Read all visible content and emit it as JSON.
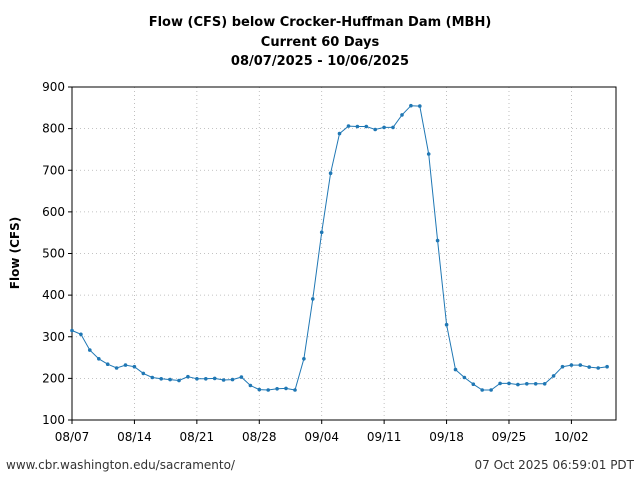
{
  "chart_data": {
    "type": "line",
    "title": [
      "Flow (CFS) below Crocker-Huffman Dam (MBH)",
      "Current 60 Days",
      "08/07/2025 - 10/06/2025"
    ],
    "xlabel": "",
    "ylabel": "Flow (CFS)",
    "ylim": [
      100,
      900
    ],
    "yticks": [
      100,
      200,
      300,
      400,
      500,
      600,
      700,
      800,
      900
    ],
    "xticks": [
      {
        "day": 0,
        "label": "08/07"
      },
      {
        "day": 7,
        "label": "08/14"
      },
      {
        "day": 14,
        "label": "08/21"
      },
      {
        "day": 21,
        "label": "08/28"
      },
      {
        "day": 28,
        "label": "09/04"
      },
      {
        "day": 35,
        "label": "09/11"
      },
      {
        "day": 42,
        "label": "09/18"
      },
      {
        "day": 49,
        "label": "09/25"
      },
      {
        "day": 56,
        "label": "10/02"
      }
    ],
    "xlim": [
      0,
      61
    ],
    "grid": true,
    "color": "#1f77b4",
    "series": [
      {
        "name": "",
        "values": [
          315,
          306,
          268,
          247,
          234,
          225,
          232,
          228,
          212,
          202,
          199,
          197,
          195,
          204,
          199,
          199,
          200,
          196,
          197,
          203,
          183,
          173,
          172,
          175,
          176,
          172,
          247,
          391,
          551,
          693,
          788,
          806,
          805,
          805,
          798,
          803,
          803,
          833,
          855,
          854,
          739,
          531,
          329,
          221,
          202,
          186,
          172,
          172,
          188,
          188,
          185,
          187,
          187,
          187,
          206,
          228,
          232,
          232,
          227,
          225,
          228
        ]
      }
    ]
  },
  "footer": {
    "source": "www.cbr.washington.edu/sacramento/",
    "timestamp": "07 Oct 2025 06:59:01 PDT"
  }
}
